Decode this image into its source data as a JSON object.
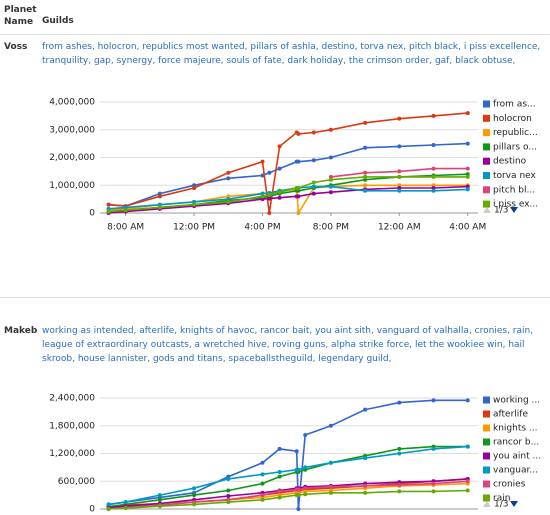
{
  "table": {
    "headers": [
      "Planet Name",
      "Guilds"
    ],
    "rows": [
      {
        "planet": "Voss",
        "guilds": "from ashes, holocron, republics most wanted, pillars of ashla, destino, torva nex, pitch black, i piss excellence, tranquility, gap, synergy, force majeure, souls of fate, dark holiday, the crimson order, gaf, black obtuse,"
      },
      {
        "planet": "Makeb",
        "guilds": "working as intended, afterlife, knights of havoc, rancor bait, you aint sith, vanguard of valhalla, cronies, rain, league of extraordinary outcasts, a wretched hive, roving guns, alpha strike force, let the wookiee win, hail skroob, house lannister, gods and titans, spaceballstheguild, legendary guild,"
      }
    ]
  },
  "chart_data": [
    {
      "type": "line",
      "legend_pager": "1/3",
      "x": [
        7,
        8,
        10,
        12,
        14,
        16,
        16.4,
        17,
        18,
        18.1,
        19,
        20,
        22,
        24,
        26,
        28
      ],
      "xlim": [
        6.5,
        28.6
      ],
      "xticks": [
        {
          "value": 8,
          "label": "8:00 AM"
        },
        {
          "value": 12,
          "label": "12:00 PM"
        },
        {
          "value": 16,
          "label": "4:00 PM"
        },
        {
          "value": 20,
          "label": "8:00 PM"
        },
        {
          "value": 24,
          "label": "12:00 AM"
        },
        {
          "value": 28,
          "label": "4:00 AM"
        }
      ],
      "ylim": [
        0,
        4000000
      ],
      "yticks": [
        0,
        {
          "value": 1000000,
          "label": "1,000,000"
        },
        {
          "value": 2000000,
          "label": "2,000,000"
        },
        {
          "value": 3000000,
          "label": "3,000,000"
        },
        {
          "value": 4000000,
          "label": "4,000,000"
        }
      ],
      "grid": true,
      "series": [
        {
          "name": "from as...",
          "color": "#3366cc",
          "values": [
            300000,
            250000,
            700000,
            1000000,
            1250000,
            1350000,
            1450000,
            1600000,
            1850000,
            1850000,
            1900000,
            2000000,
            2350000,
            2400000,
            2450000,
            2500000
          ]
        },
        {
          "name": "holocron",
          "color": "#dc3912",
          "values": [
            300000,
            250000,
            600000,
            900000,
            1450000,
            1850000,
            0,
            2400000,
            2900000,
            2850000,
            2900000,
            3000000,
            3250000,
            3400000,
            3500000,
            3600000
          ]
        },
        {
          "name": "republic...",
          "color": "#ff9900",
          "values": [
            100000,
            150000,
            300000,
            400000,
            600000,
            700000,
            720000,
            800000,
            850000,
            0,
            900000,
            950000,
            1000000,
            1000000,
            1000000,
            1000000
          ]
        },
        {
          "name": "pillars o...",
          "color": "#109618",
          "values": [
            50000,
            100000,
            200000,
            300000,
            450000,
            550000,
            600000,
            700000,
            800000,
            800000,
            900000,
            1000000,
            1200000,
            1300000,
            1350000,
            1400000
          ]
        },
        {
          "name": "destino",
          "color": "#990099",
          "values": [
            0,
            50000,
            150000,
            250000,
            350000,
            500000,
            520000,
            550000,
            600000,
            600000,
            700000,
            750000,
            850000,
            900000,
            900000,
            950000
          ]
        },
        {
          "name": "torva nex",
          "color": "#0099c6",
          "values": [
            150000,
            200000,
            300000,
            400000,
            500000,
            700000,
            720000,
            800000,
            900000,
            900000,
            950000,
            950000,
            800000,
            800000,
            800000,
            850000
          ]
        },
        {
          "name": "pitch bl...",
          "color": "#dd4477",
          "values": [
            null,
            null,
            null,
            null,
            null,
            null,
            null,
            null,
            null,
            null,
            null,
            1300000,
            1450000,
            1500000,
            1600000,
            1600000
          ]
        },
        {
          "name": "i piss ex...",
          "color": "#66aa00",
          "values": [
            50000,
            100000,
            200000,
            300000,
            400000,
            600000,
            650000,
            750000,
            900000,
            900000,
            1100000,
            1200000,
            1300000,
            1300000,
            1300000,
            1300000
          ]
        }
      ]
    },
    {
      "type": "line",
      "legend_pager": "1/3",
      "x": [
        7,
        8,
        10,
        12,
        14,
        16,
        17,
        18,
        18.1,
        18.5,
        20,
        22,
        24,
        26,
        28
      ],
      "xlim": [
        6.5,
        28.6
      ],
      "ylim": [
        0,
        2400000
      ],
      "yticks": [
        0,
        {
          "value": 600000,
          "label": "600,000"
        },
        {
          "value": 1200000,
          "label": "1,200,000"
        },
        {
          "value": 1800000,
          "label": "1,800,000"
        },
        {
          "value": 2400000,
          "label": "2,400,000"
        }
      ],
      "grid": true,
      "series": [
        {
          "name": "working ...",
          "color": "#3366cc",
          "values": [
            100000,
            150000,
            250000,
            350000,
            700000,
            1000000,
            1300000,
            1250000,
            0,
            1600000,
            1800000,
            2150000,
            2300000,
            2350000,
            2350000
          ]
        },
        {
          "name": "afterlife",
          "color": "#dc3912",
          "values": [
            50000,
            80000,
            120000,
            150000,
            200000,
            300000,
            350000,
            400000,
            400000,
            420000,
            450000,
            500000,
            550000,
            600000,
            650000
          ]
        },
        {
          "name": "knights ...",
          "color": "#ff9900",
          "values": [
            20000,
            50000,
            100000,
            150000,
            200000,
            250000,
            300000,
            350000,
            350000,
            380000,
            400000,
            450000,
            500000,
            520000,
            550000
          ]
        },
        {
          "name": "rancor b...",
          "color": "#109618",
          "values": [
            50000,
            100000,
            200000,
            300000,
            400000,
            550000,
            700000,
            800000,
            800000,
            850000,
            1000000,
            1150000,
            1300000,
            1350000,
            1350000
          ]
        },
        {
          "name": "you aint ...",
          "color": "#990099",
          "values": [
            30000,
            60000,
            120000,
            200000,
            280000,
            350000,
            400000,
            450000,
            450000,
            480000,
            500000,
            550000,
            580000,
            600000,
            650000
          ]
        },
        {
          "name": "vanguar...",
          "color": "#0099c6",
          "values": [
            100000,
            150000,
            300000,
            450000,
            650000,
            750000,
            800000,
            850000,
            850000,
            900000,
            1000000,
            1100000,
            1200000,
            1300000,
            1350000
          ]
        },
        {
          "name": "cronies",
          "color": "#dd4477",
          "values": [
            0,
            30000,
            80000,
            150000,
            200000,
            300000,
            380000,
            420000,
            420000,
            450000,
            480000,
            500000,
            520000,
            550000,
            600000
          ]
        },
        {
          "name": "rain",
          "color": "#66aa00",
          "values": [
            0,
            20000,
            60000,
            100000,
            150000,
            200000,
            250000,
            300000,
            300000,
            320000,
            350000,
            350000,
            380000,
            380000,
            400000
          ]
        }
      ]
    }
  ]
}
